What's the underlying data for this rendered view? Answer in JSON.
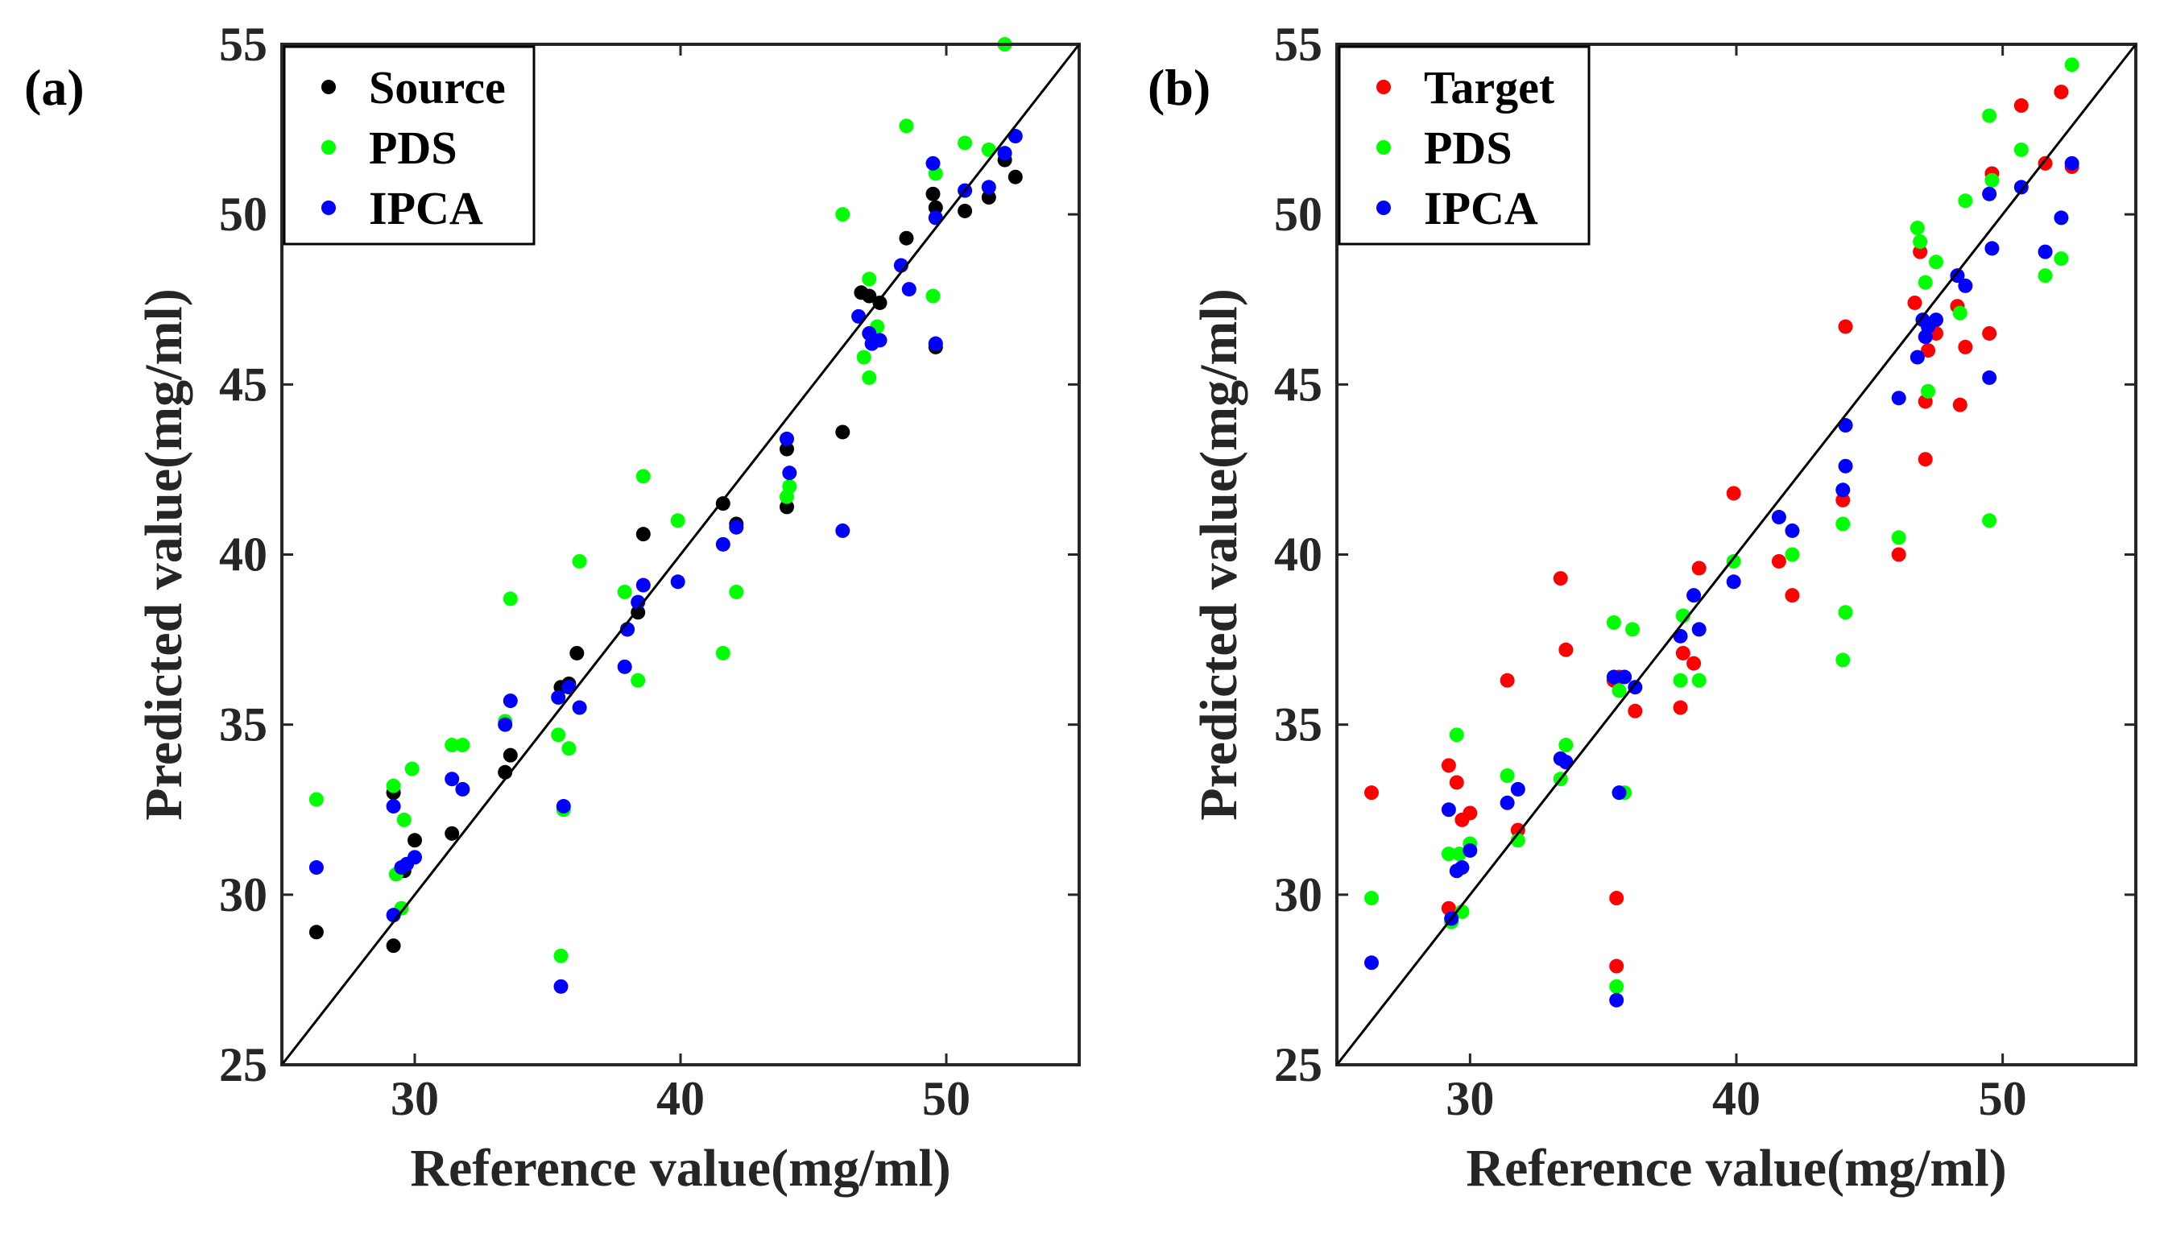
{
  "figure": {
    "colors": {
      "Source": "#000000",
      "Target": "#ff0000",
      "PDS": "#00ff00",
      "IPCA": "#0000ff"
    }
  },
  "chart_data": [
    {
      "type": "scatter",
      "panel_label": "(a)",
      "xlabel": "Reference value(mg/ml)",
      "ylabel": "Predicted value(mg/ml)",
      "xlim": [
        25,
        55
      ],
      "ylim": [
        25,
        55
      ],
      "xticks": [
        30,
        40,
        50
      ],
      "yticks": [
        25,
        30,
        35,
        40,
        45,
        50,
        55
      ],
      "reference_line": "y = x",
      "legend": [
        "Source",
        "PDS",
        "IPCA"
      ],
      "legend_position": "top-left",
      "series": [
        {
          "name": "Source",
          "x": [
            26.3,
            29.2,
            29.2,
            29.6,
            30.0,
            31.4,
            33.4,
            33.6,
            35.5,
            35.8,
            36.1,
            38.0,
            38.4,
            38.6,
            41.6,
            42.1,
            44.0,
            44.0,
            46.1,
            46.8,
            47.1,
            47.5,
            48.5,
            49.5,
            49.6,
            49.6,
            50.7,
            51.6,
            52.2,
            52.6
          ],
          "y": [
            28.9,
            28.5,
            33.0,
            30.7,
            31.6,
            31.8,
            33.6,
            34.1,
            36.1,
            36.2,
            37.1,
            37.8,
            38.3,
            40.6,
            41.5,
            40.9,
            43.1,
            41.4,
            43.6,
            47.7,
            47.6,
            47.4,
            49.3,
            50.6,
            50.2,
            46.1,
            50.1,
            50.5,
            51.6,
            51.1
          ]
        },
        {
          "name": "PDS",
          "x": [
            26.3,
            29.2,
            29.3,
            29.5,
            29.6,
            29.9,
            31.4,
            31.8,
            33.4,
            33.6,
            35.4,
            35.5,
            35.6,
            35.8,
            36.2,
            37.9,
            38.4,
            38.6,
            39.9,
            41.6,
            42.1,
            44.0,
            44.1,
            46.1,
            46.9,
            47.1,
            47.1,
            47.4,
            48.5,
            49.5,
            49.6,
            49.6,
            50.7,
            51.6,
            52.2
          ],
          "y": [
            32.8,
            33.2,
            30.6,
            29.6,
            32.2,
            33.7,
            34.4,
            34.4,
            35.1,
            38.7,
            34.7,
            28.2,
            32.5,
            34.3,
            39.8,
            38.9,
            36.3,
            42.3,
            41.0,
            37.1,
            38.9,
            41.7,
            42.0,
            50.0,
            45.8,
            45.2,
            48.1,
            46.7,
            52.6,
            47.6,
            51.2,
            46.2,
            52.1,
            51.9,
            55.0
          ]
        },
        {
          "name": "IPCA",
          "x": [
            26.3,
            29.2,
            29.2,
            29.5,
            29.7,
            30.0,
            31.4,
            31.8,
            33.4,
            33.6,
            35.4,
            35.5,
            35.6,
            35.8,
            36.2,
            37.9,
            38.0,
            38.4,
            38.6,
            39.9,
            41.6,
            42.1,
            44.0,
            44.1,
            46.1,
            46.7,
            47.1,
            47.2,
            47.5,
            48.3,
            48.6,
            49.5,
            49.6,
            49.6,
            50.7,
            51.6,
            52.2,
            52.6
          ],
          "y": [
            30.8,
            32.6,
            29.4,
            30.8,
            30.9,
            31.1,
            33.4,
            33.1,
            35.0,
            35.7,
            35.8,
            27.3,
            32.6,
            36.1,
            35.5,
            36.7,
            37.8,
            38.6,
            39.1,
            39.2,
            40.3,
            40.8,
            43.4,
            42.4,
            40.7,
            47.0,
            46.5,
            46.2,
            46.3,
            48.5,
            47.8,
            51.5,
            49.9,
            46.2,
            50.7,
            50.8,
            51.8,
            52.3
          ]
        }
      ]
    },
    {
      "type": "scatter",
      "panel_label": "(b)",
      "xlabel": "Reference value(mg/ml)",
      "ylabel": "Predicted value(mg/ml)",
      "xlim": [
        25,
        55
      ],
      "ylim": [
        25,
        55
      ],
      "xticks": [
        30,
        40,
        50
      ],
      "yticks": [
        25,
        30,
        35,
        40,
        45,
        50,
        55
      ],
      "reference_line": "y = x",
      "legend": [
        "Target",
        "PDS",
        "IPCA"
      ],
      "legend_position": "top-left",
      "series": [
        {
          "name": "Target",
          "x": [
            26.3,
            29.2,
            29.2,
            29.5,
            29.7,
            30.0,
            31.4,
            31.8,
            33.4,
            33.6,
            35.4,
            35.5,
            35.5,
            35.6,
            36.2,
            37.9,
            38.0,
            38.4,
            38.6,
            39.9,
            41.6,
            42.1,
            44.0,
            44.1,
            46.1,
            46.7,
            46.9,
            47.1,
            47.1,
            47.2,
            47.5,
            48.3,
            48.4,
            48.6,
            49.5,
            49.6,
            50.7,
            51.6,
            52.2,
            52.6
          ],
          "y": [
            33.0,
            33.8,
            29.6,
            33.3,
            32.2,
            32.4,
            36.3,
            31.9,
            39.3,
            37.2,
            36.3,
            29.9,
            27.9,
            36.4,
            35.4,
            35.5,
            37.1,
            36.8,
            39.6,
            41.8,
            39.8,
            38.8,
            41.6,
            46.7,
            40.0,
            47.4,
            48.9,
            42.8,
            44.5,
            46.0,
            46.5,
            47.3,
            44.4,
            46.1,
            46.5,
            51.2,
            53.2,
            51.5,
            53.6,
            51.4
          ]
        },
        {
          "name": "PDS",
          "x": [
            26.3,
            29.2,
            29.3,
            29.5,
            29.6,
            29.7,
            30.0,
            31.4,
            31.8,
            33.4,
            33.6,
            35.4,
            35.5,
            35.6,
            35.8,
            36.1,
            37.9,
            38.0,
            38.6,
            39.9,
            42.1,
            44.0,
            44.0,
            44.1,
            46.1,
            46.8,
            46.9,
            47.1,
            47.2,
            47.5,
            48.4,
            48.6,
            49.5,
            49.5,
            49.6,
            50.7,
            51.6,
            52.2,
            52.6
          ],
          "y": [
            29.9,
            31.2,
            29.2,
            34.7,
            31.2,
            29.5,
            31.5,
            33.5,
            31.6,
            33.4,
            34.4,
            38.0,
            27.3,
            36.0,
            33.0,
            37.8,
            36.3,
            38.2,
            36.3,
            39.8,
            40.0,
            36.9,
            40.9,
            38.3,
            40.5,
            49.6,
            49.2,
            48.0,
            44.8,
            48.6,
            47.1,
            50.4,
            52.9,
            41.0,
            51.0,
            51.9,
            48.2,
            48.7,
            54.4
          ]
        },
        {
          "name": "IPCA",
          "x": [
            26.3,
            29.2,
            29.3,
            29.5,
            29.7,
            30.0,
            31.4,
            31.8,
            33.4,
            33.6,
            35.4,
            35.5,
            35.6,
            35.8,
            36.2,
            37.9,
            38.4,
            38.6,
            39.9,
            41.6,
            42.1,
            44.0,
            44.1,
            44.1,
            46.1,
            46.8,
            47.0,
            47.1,
            47.2,
            47.5,
            48.3,
            48.6,
            49.5,
            49.5,
            49.6,
            50.7,
            51.6,
            52.2,
            52.6
          ],
          "y": [
            28.0,
            32.5,
            29.3,
            30.7,
            30.8,
            31.3,
            32.7,
            33.1,
            34.0,
            33.9,
            36.4,
            26.9,
            33.0,
            36.4,
            36.1,
            37.6,
            38.8,
            37.8,
            39.2,
            41.1,
            40.7,
            41.9,
            43.8,
            42.6,
            44.6,
            45.8,
            46.9,
            46.4,
            46.7,
            46.9,
            48.2,
            47.9,
            50.6,
            45.2,
            49.0,
            50.8,
            48.9,
            49.9,
            51.5
          ]
        }
      ]
    }
  ]
}
